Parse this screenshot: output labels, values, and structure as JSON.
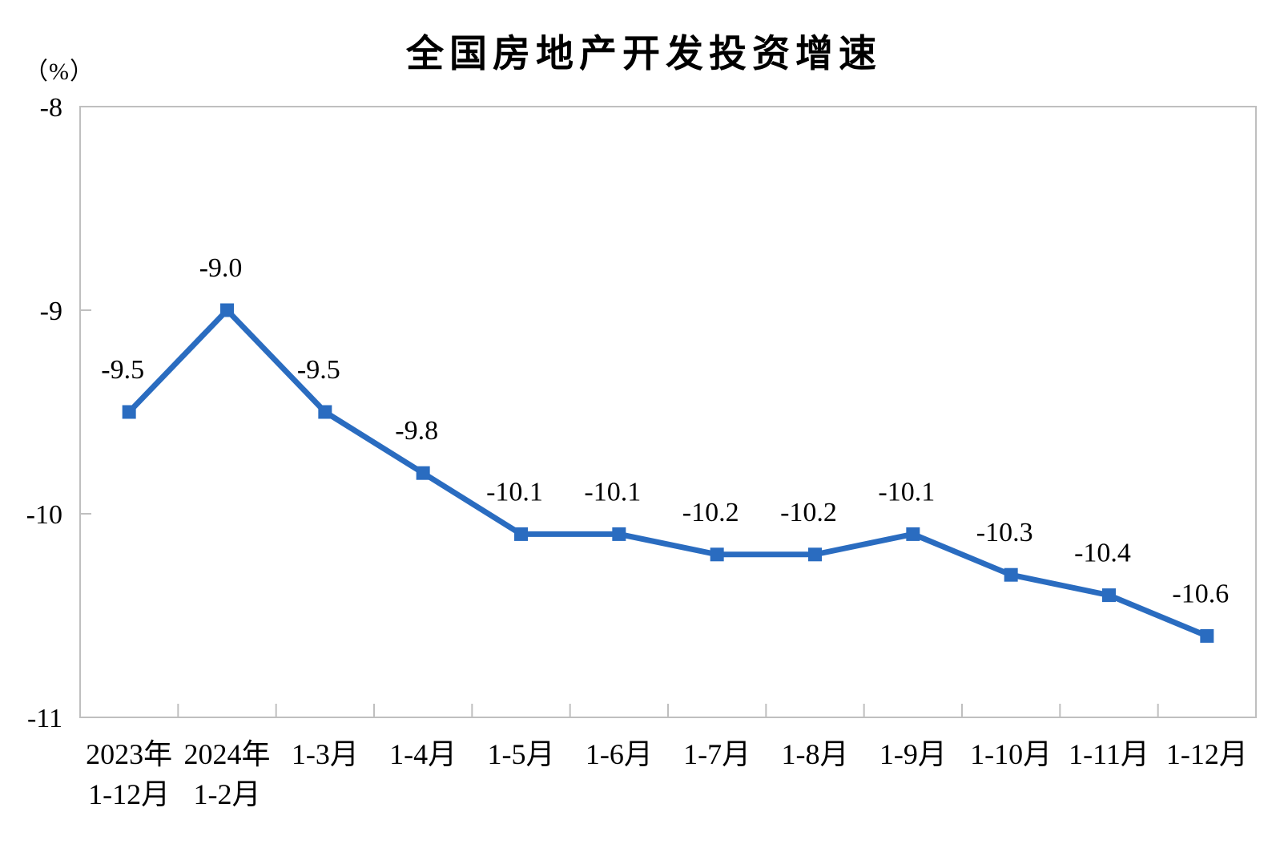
{
  "chart_data": {
    "type": "line",
    "title": "全国房地产开发投资增速",
    "unit_label": "（%）",
    "categories": [
      [
        "2023年",
        "1-12月"
      ],
      [
        "2024年",
        "1-2月"
      ],
      [
        "1-3月"
      ],
      [
        "1-4月"
      ],
      [
        "1-5月"
      ],
      [
        "1-6月"
      ],
      [
        "1-7月"
      ],
      [
        "1-8月"
      ],
      [
        "1-9月"
      ],
      [
        "1-10月"
      ],
      [
        "1-11月"
      ],
      [
        "1-12月"
      ]
    ],
    "values": [
      -9.5,
      -9.0,
      -9.5,
      -9.8,
      -10.1,
      -10.1,
      -10.2,
      -10.2,
      -10.1,
      -10.3,
      -10.4,
      -10.6
    ],
    "data_labels": [
      "-9.5",
      "-9.0",
      "-9.5",
      "-9.8",
      "-10.1",
      "-10.1",
      "-10.2",
      "-10.2",
      "-10.1",
      "-10.3",
      "-10.4",
      "-10.6"
    ],
    "y_tick_labels": [
      "-8",
      "-9",
      "-10",
      "-11"
    ],
    "y_tick_values": [
      -8,
      -9,
      -10,
      -11
    ],
    "ylim": [
      -11,
      -8
    ],
    "xlabel": "",
    "ylabel": "（%）",
    "grid": false,
    "legend": "none",
    "marker": "square",
    "line_color": "#2a6cc0",
    "text_color": "#000000",
    "axis_color": "#bfbfbf"
  }
}
